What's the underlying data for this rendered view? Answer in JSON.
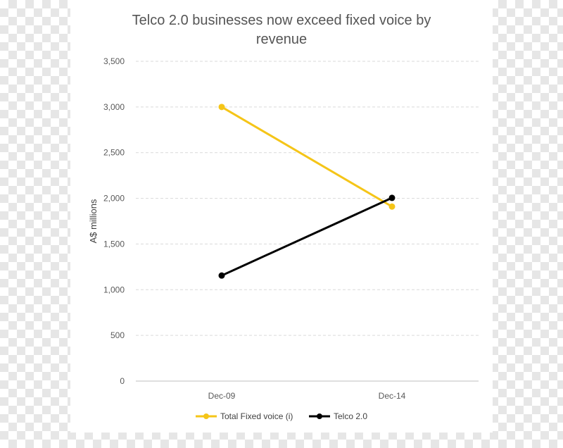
{
  "chart_data": {
    "type": "line",
    "title_lines": [
      "Telco 2.0 businesses now exceed fixed voice by",
      "revenue"
    ],
    "xlabel": "",
    "ylabel": "A$ millions",
    "categories": [
      "Dec-09",
      "Dec-14"
    ],
    "ylim": [
      0,
      3500
    ],
    "yticks": [
      0,
      500,
      1000,
      1500,
      2000,
      2500,
      3000,
      3500
    ],
    "ytick_labels": [
      "0",
      "500",
      "1,000",
      "1,500",
      "2,000",
      "2,500",
      "3,000",
      "3,500"
    ],
    "grid": true,
    "legend_position": "bottom",
    "series": [
      {
        "name": "Total Fixed voice (i)",
        "color": "#F5C518",
        "values": [
          3000,
          1910
        ]
      },
      {
        "name": "Telco 2.0",
        "color": "#000000",
        "values": [
          1155,
          2005
        ]
      }
    ]
  }
}
